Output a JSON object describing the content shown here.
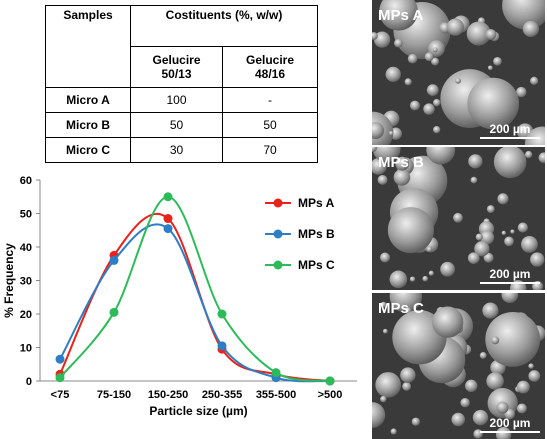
{
  "table": {
    "header": {
      "samples": "Samples",
      "constituents": "Costituents (%, w/w)",
      "col1": "Gelucire 50/13",
      "col2": "Gelucire 48/16"
    },
    "rows": [
      [
        "Micro A",
        "100",
        "-"
      ],
      [
        "Micro B",
        "50",
        "50"
      ],
      [
        "Micro C",
        "30",
        "70"
      ]
    ]
  },
  "chart_data": {
    "type": "line",
    "x_label": "Particle size (µm)",
    "y_label": "% Frequency",
    "categories": [
      "<75",
      "75-150",
      "150-250",
      "250-355",
      "355-500",
      ">500"
    ],
    "series": [
      {
        "name": "MPs A",
        "color": "#e8231c",
        "values": [
          2,
          37.5,
          48.5,
          9.5,
          2,
          0
        ]
      },
      {
        "name": "MPs B",
        "color": "#2e7ec6",
        "values": [
          6.5,
          36,
          45.5,
          10.5,
          1,
          0
        ]
      },
      {
        "name": "MPs C",
        "color": "#2dbb5a",
        "values": [
          1,
          20.5,
          55,
          20,
          2.5,
          0
        ]
      }
    ],
    "ylim": [
      0,
      60
    ],
    "yticks": [
      0,
      10,
      20,
      30,
      40,
      50,
      60
    ],
    "smooth": true,
    "grid": false,
    "legend": "upper right"
  },
  "images": [
    {
      "label": "MPs A",
      "scale": "200 µm"
    },
    {
      "label": "MPs B",
      "scale": "200 µm"
    },
    {
      "label": "MPs C",
      "scale": "200 µm"
    }
  ]
}
